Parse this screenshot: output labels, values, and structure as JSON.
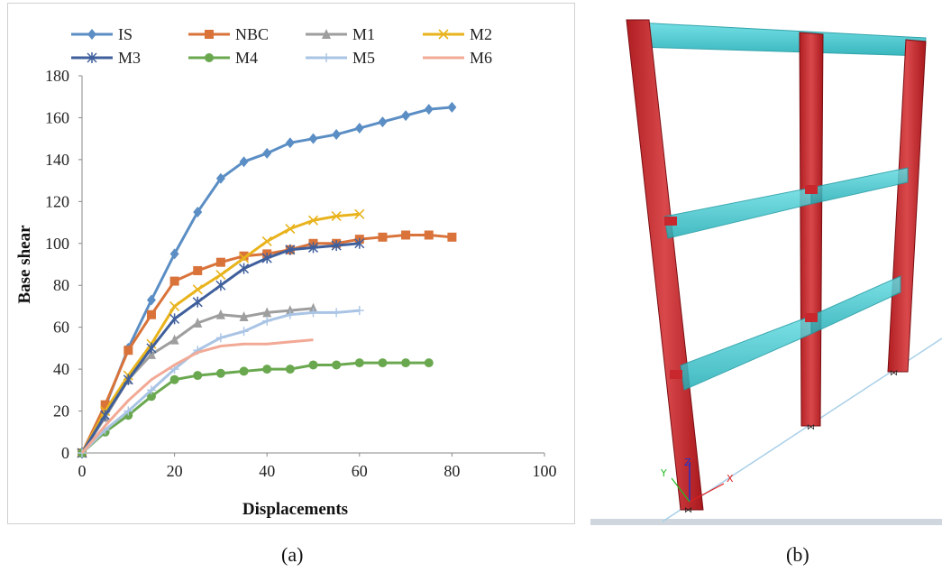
{
  "captions": {
    "a": "(a)",
    "b": "(b)"
  },
  "chart_data": {
    "type": "line",
    "xlabel": "Displacements",
    "ylabel": "Base shear",
    "xlim": [
      0,
      100
    ],
    "ylim": [
      0,
      180
    ],
    "x_ticks": [
      "0",
      "20",
      "40",
      "60",
      "80",
      "100"
    ],
    "y_ticks": [
      "0",
      "20",
      "40",
      "60",
      "80",
      "100",
      "120",
      "140",
      "160",
      "180"
    ],
    "legend_position": "top",
    "grid": false,
    "series": [
      {
        "name": "IS",
        "color": "#5b8ec4",
        "marker": "diamond",
        "x": [
          0,
          5,
          10,
          15,
          20,
          25,
          30,
          35,
          40,
          45,
          50,
          55,
          60,
          65,
          70,
          75,
          80
        ],
        "y": [
          0,
          22,
          50,
          73,
          95,
          115,
          131,
          139,
          143,
          148,
          150,
          152,
          155,
          158,
          161,
          164,
          165
        ]
      },
      {
        "name": "NBC",
        "color": "#d9733a",
        "marker": "square",
        "x": [
          0,
          5,
          10,
          15,
          20,
          25,
          30,
          35,
          40,
          45,
          50,
          55,
          60,
          65,
          70,
          75,
          80
        ],
        "y": [
          0,
          23,
          49,
          66,
          82,
          87,
          91,
          94,
          95,
          97,
          100,
          100,
          102,
          103,
          104,
          104,
          103
        ]
      },
      {
        "name": "M1",
        "color": "#9e9e9e",
        "marker": "triangle",
        "x": [
          0,
          5,
          10,
          15,
          20,
          25,
          30,
          35,
          40,
          45,
          50
        ],
        "y": [
          0,
          17,
          35,
          47,
          54,
          62,
          66,
          65,
          67,
          68,
          69
        ]
      },
      {
        "name": "M2",
        "color": "#e8b31c",
        "marker": "x",
        "x": [
          0,
          5,
          10,
          15,
          20,
          25,
          30,
          35,
          40,
          45,
          50,
          55,
          60
        ],
        "y": [
          0,
          20,
          37,
          52,
          70,
          78,
          85,
          93,
          101,
          107,
          111,
          113,
          114
        ]
      },
      {
        "name": "M3",
        "color": "#3f5f9c",
        "marker": "star",
        "x": [
          0,
          5,
          10,
          15,
          20,
          25,
          30,
          35,
          40,
          45,
          50,
          55,
          60
        ],
        "y": [
          0,
          18,
          35,
          50,
          64,
          72,
          80,
          88,
          93,
          97,
          98,
          99,
          100
        ]
      },
      {
        "name": "M4",
        "color": "#6aa84f",
        "marker": "circle",
        "x": [
          0,
          5,
          10,
          15,
          20,
          25,
          30,
          35,
          40,
          45,
          50,
          55,
          60,
          65,
          70,
          75
        ],
        "y": [
          0,
          10,
          18,
          27,
          35,
          37,
          38,
          39,
          40,
          40,
          42,
          42,
          43,
          43,
          43,
          43
        ]
      },
      {
        "name": "M5",
        "color": "#a9c4e4",
        "marker": "plus",
        "x": [
          0,
          5,
          10,
          15,
          20,
          25,
          30,
          35,
          40,
          45,
          50,
          55,
          60
        ],
        "y": [
          0,
          11,
          20,
          30,
          40,
          49,
          55,
          58,
          63,
          66,
          67,
          67,
          68
        ]
      },
      {
        "name": "M6",
        "color": "#f2a996",
        "marker": "none",
        "x": [
          0,
          5,
          10,
          15,
          20,
          25,
          30,
          35,
          40,
          45,
          50
        ],
        "y": [
          0,
          13,
          25,
          35,
          42,
          48,
          51,
          52,
          52,
          53,
          54
        ]
      }
    ]
  },
  "model_view": {
    "description_colors": {
      "columns": "#c8282d",
      "beams": "#36c8cf",
      "ground_line": "#a8cfe8",
      "floor": "#cfd6de"
    },
    "axis_labels": {
      "x": "X",
      "y": "Y",
      "z": "Z"
    }
  }
}
